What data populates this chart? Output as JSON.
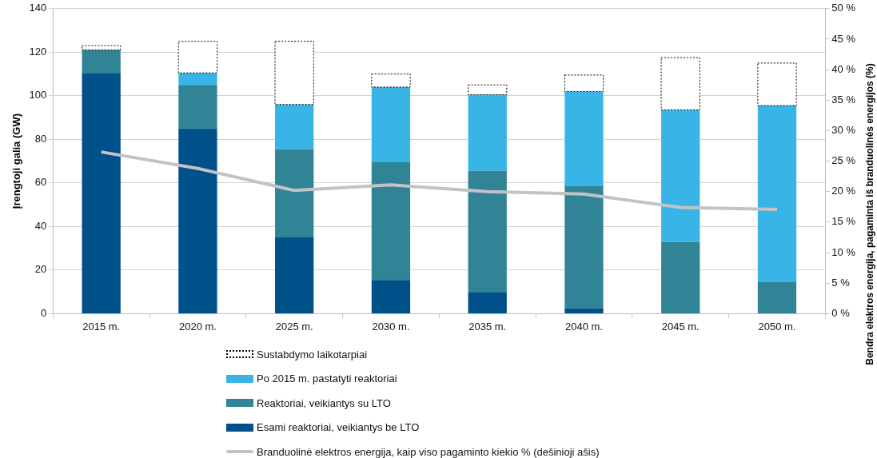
{
  "chart_data": {
    "type": "bar",
    "stacked": true,
    "categories": [
      "2015 m.",
      "2020 m.",
      "2025 m.",
      "2030 m.",
      "2035 m.",
      "2040 m.",
      "2045 m.",
      "2050 m."
    ],
    "ylabel": "Įrengtoji galia (GW)",
    "y2label": "Bendra elektros energija, pagaminta iš branduolinės energijos (%)",
    "ylim": [
      0,
      140
    ],
    "yticks": [
      0,
      20,
      40,
      60,
      80,
      100,
      120,
      140
    ],
    "y2lim": [
      0,
      50
    ],
    "y2ticks": [
      {
        "value": 0,
        "label": "0 %"
      },
      {
        "value": 5,
        "label": "5 %"
      },
      {
        "value": 10,
        "label": "10 %"
      },
      {
        "value": 15,
        "label": "15 %"
      },
      {
        "value": 20,
        "label": "20 %"
      },
      {
        "value": 25,
        "label": "25 %"
      },
      {
        "value": 30,
        "label": "30 %"
      },
      {
        "value": 35,
        "label": "35 %"
      },
      {
        "value": 40,
        "label": "40 %"
      },
      {
        "value": 45,
        "label": "45 %"
      },
      {
        "value": 50,
        "label": "50 %"
      }
    ],
    "grid": "y",
    "legend": "bottom",
    "marker": "none",
    "series": [
      {
        "name": "Esami reaktoriai, veikiantys be LTO",
        "color": "#00508a",
        "values": [
          110.5,
          85,
          35,
          15.5,
          10,
          2.5,
          0,
          0
        ]
      },
      {
        "name": "Reaktoriai, veikiantys su LTO",
        "color": "#318496",
        "values": [
          10.5,
          20,
          40.5,
          54,
          55.5,
          56,
          33,
          14.5
        ]
      },
      {
        "name": "Po 2015 m. pastatyti reaktoriai",
        "color": "#38b5e6",
        "values": [
          0,
          5.5,
          20.5,
          34.5,
          35,
          43.5,
          60.5,
          81
        ]
      },
      {
        "name": "Sustabdymo laikotarpiai",
        "color": "#000000",
        "line_style": "dotted",
        "values": [
          2,
          14.5,
          29,
          6,
          4.5,
          7.5,
          24,
          19.5
        ]
      },
      {
        "name": "Branduolinė elektros energija, kaip viso pagaminto kiekio % (dešinioji ašis)",
        "type": "line",
        "axis": "y2",
        "color": "#c3c3c7",
        "values": [
          26.5,
          23.8,
          20.2,
          21.1,
          20,
          19.6,
          17.4,
          17.1
        ]
      }
    ]
  }
}
